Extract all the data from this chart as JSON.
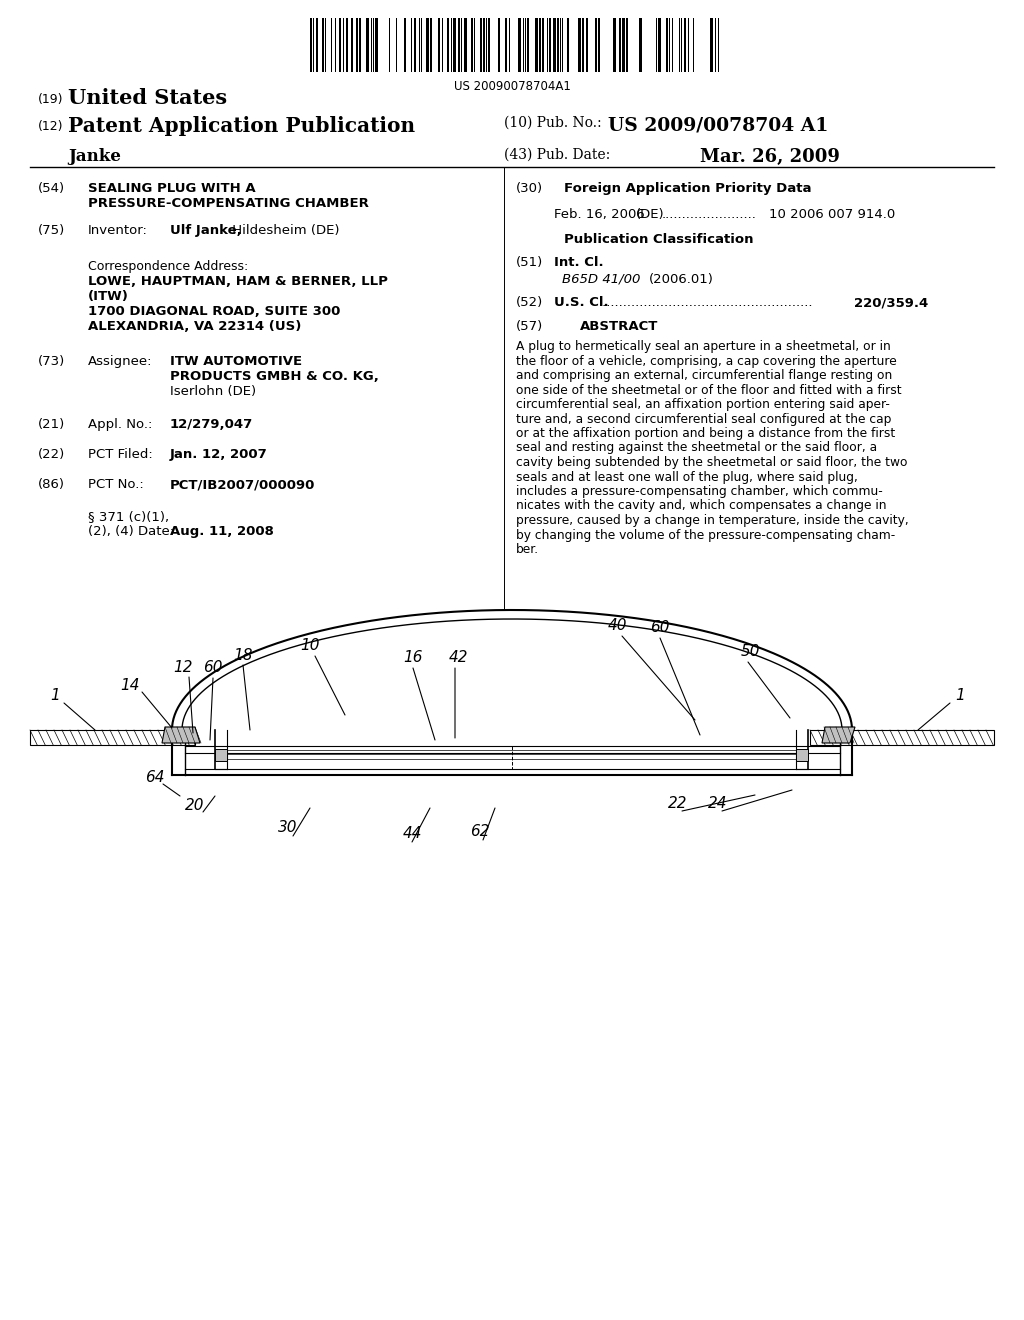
{
  "background_color": "#ffffff",
  "barcode_text": "US 20090078704A1",
  "header": {
    "country": "United States",
    "type": "Patent Application Publication",
    "pub_no": "US 2009/0078704 A1",
    "inventor_surname": "Janke",
    "date": "Mar. 26, 2009"
  },
  "left_col": {
    "title_line1": "SEALING PLUG WITH A",
    "title_line2": "PRESSURE-COMPENSATING CHAMBER",
    "inventor_name_bold": "Ulf Janke,",
    "inventor_loc": " Hildesheim (DE)",
    "corr_line1": "LOWE, HAUPTMAN, HAM & BERNER, LLP",
    "corr_line2": "(ITW)",
    "corr_line3": "1700 DIAGONAL ROAD, SUITE 300",
    "corr_line4": "ALEXANDRIA, VA 22314 (US)",
    "assignee_line1": "ITW AUTOMOTIVE",
    "assignee_line2": "PRODUCTS GMBH & CO. KG,",
    "assignee_loc": "Iserlohn (DE)",
    "appl_val": "12/279,047",
    "pct_filed_val": "Jan. 12, 2007",
    "pct_no_val": "PCT/IB2007/000090",
    "para371_val": "Aug. 11, 2008"
  },
  "right_col": {
    "foreign_date": "Feb. 16, 2006",
    "foreign_appno": "10 2006 007 914.0",
    "int_cl_val": "B65D 41/00",
    "int_cl_year": "(2006.01)",
    "us_cl_val": "220/359.4",
    "abstract_text": "A plug to hermetically seal an aperture in a sheetmetal, or in the floor of a vehicle, comprising, a cap covering the aperture and comprising an external, circumferential flange resting on one side of the sheetmetal or of the floor and fitted with a first circumferential seal, an affixation portion entering said aperture and, a second circumferential seal configured at the cap or at the affixation portion and being a distance from the first seal and resting against the sheetmetal or the said floor, a cavity being subtended by the sheetmetal or said floor, the two seals and at least one wall of the plug, where said plug, includes a pressure-compensating chamber, which communicates with the cavity and, which compensates a change in pressure, caused by a change in temperature, inside the cavity, by changing the volume of the pressure-compensating chamber."
  }
}
